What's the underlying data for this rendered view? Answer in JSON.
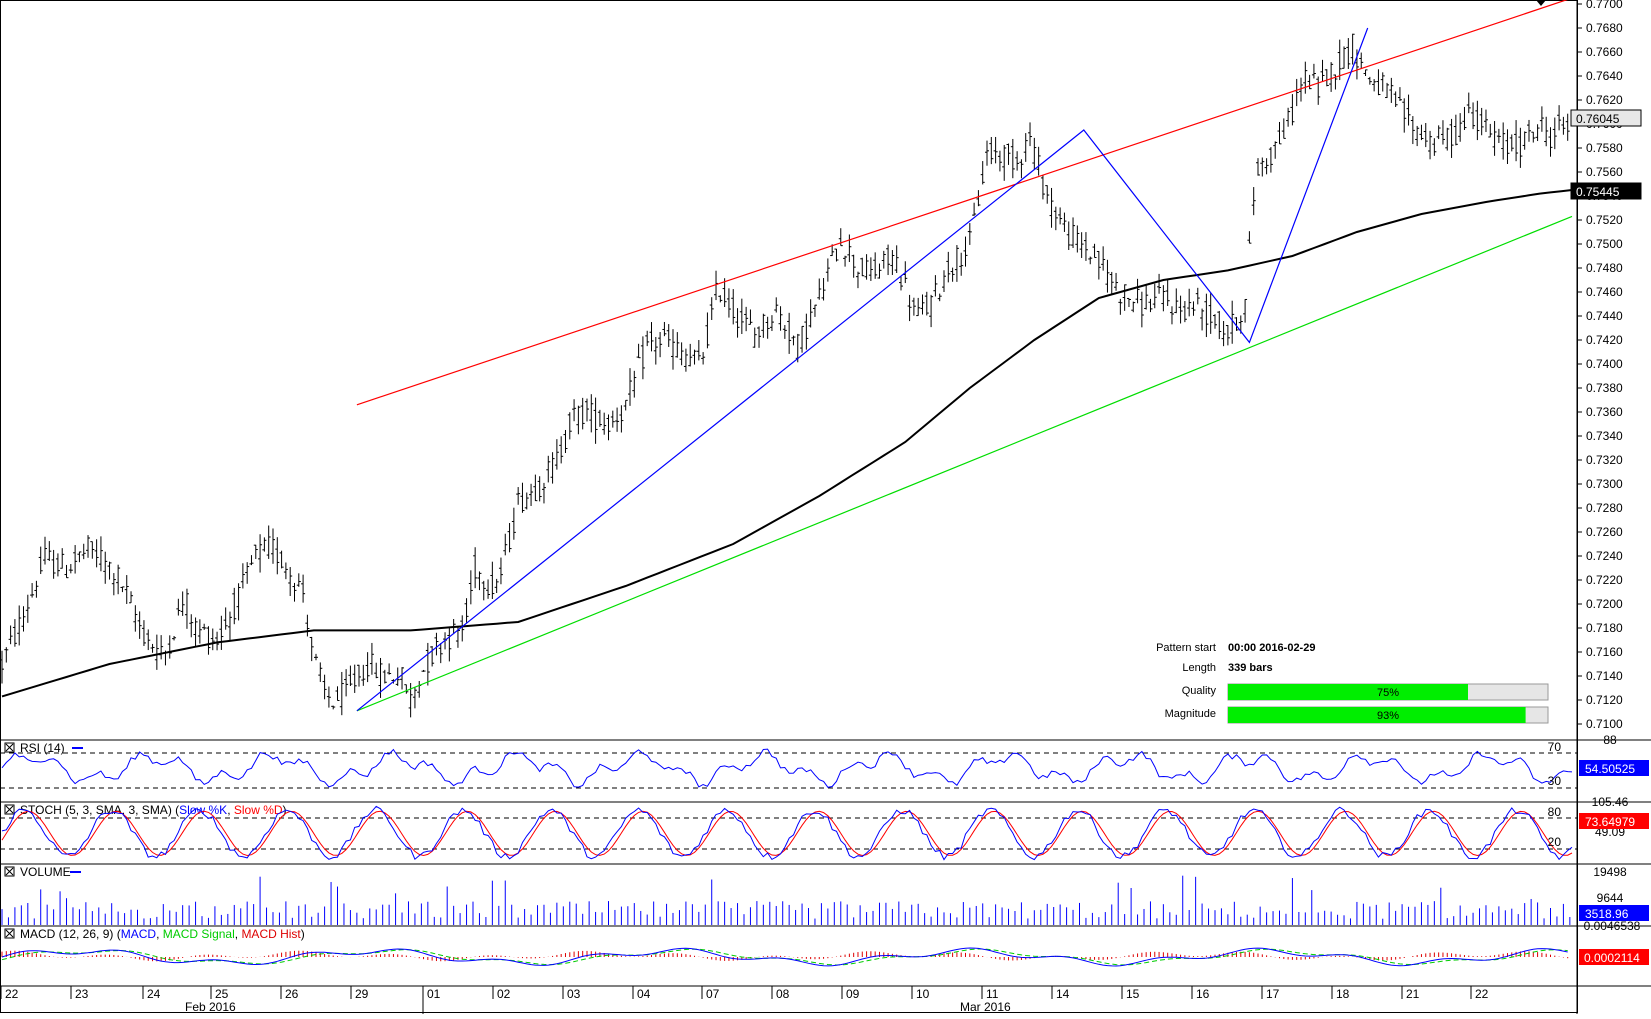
{
  "colors": {
    "resistance": "#ff0000",
    "support": "#00dd00",
    "pattern": "#0000ff",
    "sma": "#000000",
    "rsi": "#0000ff",
    "stoch_k": "#0000ff",
    "stoch_d": "#ff0000",
    "volume": "#0000ff",
    "macd": "#0000ff",
    "macd_signal": "#00cc00",
    "macd_hist": "#dd0000",
    "progress": "#00ee00"
  },
  "price_axis": {
    "ticks": [
      "0.7700",
      "0.7680",
      "0.7660",
      "0.7640",
      "0.7620",
      "0.7600",
      "0.7580",
      "0.7560",
      "0.7540",
      "0.7520",
      "0.7500",
      "0.7480",
      "0.7460",
      "0.7440",
      "0.7420",
      "0.7400",
      "0.7380",
      "0.7360",
      "0.7340",
      "0.7320",
      "0.7300",
      "0.7280",
      "0.7260",
      "0.7240",
      "0.7220",
      "0.7200",
      "0.7180",
      "0.7160",
      "0.7140",
      "0.7120",
      "0.7100"
    ],
    "last_price": "0.76045",
    "sma_value": "0.75445"
  },
  "pattern_info": {
    "start_label": "Pattern start",
    "start_value": "00:00 2016-02-29",
    "length_label": "Length",
    "length_value": "339 bars",
    "quality_label": "Quality",
    "quality_value": "75%",
    "quality_fraction": 0.75,
    "magnitude_label": "Magnitude",
    "magnitude_value": "93%",
    "magnitude_fraction": 0.93
  },
  "rsi": {
    "title": "RSI (14)",
    "levels": [
      "70",
      "30"
    ],
    "top_label": "88",
    "value": "54.50525"
  },
  "stoch": {
    "title": "STOCH (5, 3, SMA, 3, SMA)",
    "k_name": "Slow %K",
    "d_name": "Slow %D",
    "levels": [
      "80",
      "20"
    ],
    "top_label": "105.46",
    "mid_label": "49.09",
    "value": "73.64979"
  },
  "volume": {
    "title": "VOLUME",
    "ticks": [
      "19498",
      "9644"
    ],
    "value": "3518.96"
  },
  "macd": {
    "title": "MACD (12, 26, 9)",
    "names": [
      "MACD",
      "MACD Signal",
      "MACD Hist"
    ],
    "top_label": "0.0046538",
    "value": "0.0002114"
  },
  "x_axis": {
    "day_labels": [
      "22",
      "23",
      "24",
      "25",
      "26",
      "29",
      "01",
      "02",
      "03",
      "04",
      "07",
      "08",
      "09",
      "10",
      "11",
      "14",
      "15",
      "16",
      "17",
      "18",
      "21",
      "22"
    ],
    "month_labels": [
      "Feb 2016",
      "Mar 2016"
    ]
  },
  "chart_data": {
    "type": "ohlc",
    "instrument_hint": "",
    "y_range": [
      0.7093,
      0.77
    ],
    "bars_shown": 339,
    "price_path": [
      [
        0,
        0.715
      ],
      [
        10,
        0.719
      ],
      [
        20,
        0.7238
      ],
      [
        30,
        0.723
      ],
      [
        40,
        0.7245
      ],
      [
        45,
        0.724
      ],
      [
        55,
        0.722
      ],
      [
        65,
        0.7178
      ],
      [
        75,
        0.7155
      ],
      [
        85,
        0.7205
      ],
      [
        90,
        0.718
      ],
      [
        100,
        0.717
      ],
      [
        110,
        0.7205
      ],
      [
        118,
        0.724
      ],
      [
        125,
        0.7248
      ],
      [
        133,
        0.723
      ],
      [
        140,
        0.721
      ],
      [
        145,
        0.7155
      ],
      [
        150,
        0.7125
      ],
      [
        155,
        0.7118
      ],
      [
        162,
        0.713
      ],
      [
        170,
        0.715
      ],
      [
        178,
        0.714
      ],
      [
        185,
        0.7142
      ],
      [
        190,
        0.712
      ],
      [
        197,
        0.715
      ],
      [
        205,
        0.717
      ],
      [
        215,
        0.718
      ],
      [
        220,
        0.723
      ],
      [
        228,
        0.7215
      ],
      [
        232,
        0.7225
      ],
      [
        240,
        0.7285
      ],
      [
        250,
        0.73
      ],
      [
        258,
        0.732
      ],
      [
        265,
        0.7355
      ],
      [
        272,
        0.736
      ],
      [
        282,
        0.735
      ],
      [
        290,
        0.7365
      ],
      [
        300,
        0.7415
      ],
      [
        308,
        0.742
      ],
      [
        315,
        0.741
      ],
      [
        325,
        0.74
      ],
      [
        333,
        0.7465
      ],
      [
        340,
        0.7445
      ],
      [
        350,
        0.7425
      ],
      [
        360,
        0.7445
      ],
      [
        370,
        0.7415
      ],
      [
        380,
        0.7455
      ],
      [
        390,
        0.7505
      ],
      [
        398,
        0.748
      ],
      [
        405,
        0.7475
      ],
      [
        415,
        0.749
      ],
      [
        425,
        0.744
      ],
      [
        432,
        0.745
      ],
      [
        440,
        0.748
      ],
      [
        450,
        0.75
      ],
      [
        458,
        0.7575
      ],
      [
        465,
        0.7575
      ],
      [
        472,
        0.757
      ],
      [
        478,
        0.759
      ],
      [
        485,
        0.7545
      ],
      [
        495,
        0.751
      ],
      [
        505,
        0.7495
      ],
      [
        512,
        0.748
      ],
      [
        520,
        0.746
      ],
      [
        530,
        0.745
      ],
      [
        540,
        0.7455
      ],
      [
        548,
        0.7445
      ],
      [
        555,
        0.745
      ],
      [
        565,
        0.7435
      ],
      [
        570,
        0.7425
      ],
      [
        578,
        0.745
      ],
      [
        583,
        0.756
      ],
      [
        590,
        0.7575
      ],
      [
        598,
        0.76
      ],
      [
        605,
        0.764
      ],
      [
        612,
        0.763
      ],
      [
        620,
        0.7648
      ],
      [
        628,
        0.7665
      ],
      [
        635,
        0.764
      ],
      [
        645,
        0.7625
      ],
      [
        655,
        0.76
      ],
      [
        665,
        0.7585
      ],
      [
        675,
        0.759
      ],
      [
        683,
        0.7612
      ],
      [
        690,
        0.7595
      ],
      [
        700,
        0.758
      ],
      [
        708,
        0.7585
      ],
      [
        715,
        0.76
      ],
      [
        720,
        0.759
      ],
      [
        725,
        0.7598
      ],
      [
        730,
        0.76
      ]
    ],
    "sma_path": [
      [
        0,
        0.7123
      ],
      [
        50,
        0.715
      ],
      [
        100,
        0.7168
      ],
      [
        145,
        0.7178
      ],
      [
        190,
        0.7178
      ],
      [
        240,
        0.7185
      ],
      [
        290,
        0.7215
      ],
      [
        340,
        0.725
      ],
      [
        380,
        0.729
      ],
      [
        420,
        0.7335
      ],
      [
        450,
        0.738
      ],
      [
        480,
        0.742
      ],
      [
        510,
        0.7455
      ],
      [
        540,
        0.747
      ],
      [
        570,
        0.7478
      ],
      [
        600,
        0.749
      ],
      [
        630,
        0.751
      ],
      [
        660,
        0.7525
      ],
      [
        690,
        0.7535
      ],
      [
        715,
        0.7542
      ],
      [
        730,
        0.7545
      ]
    ],
    "resistance_line": [
      [
        165,
        0.7366
      ],
      [
        730,
        0.7705
      ]
    ],
    "support_line": [
      [
        165,
        0.7111
      ],
      [
        730,
        0.7523
      ]
    ],
    "pattern_legs": [
      [
        165,
        0.7111
      ],
      [
        503,
        0.7595
      ],
      [
        580,
        0.7418
      ],
      [
        635,
        0.768
      ]
    ]
  }
}
